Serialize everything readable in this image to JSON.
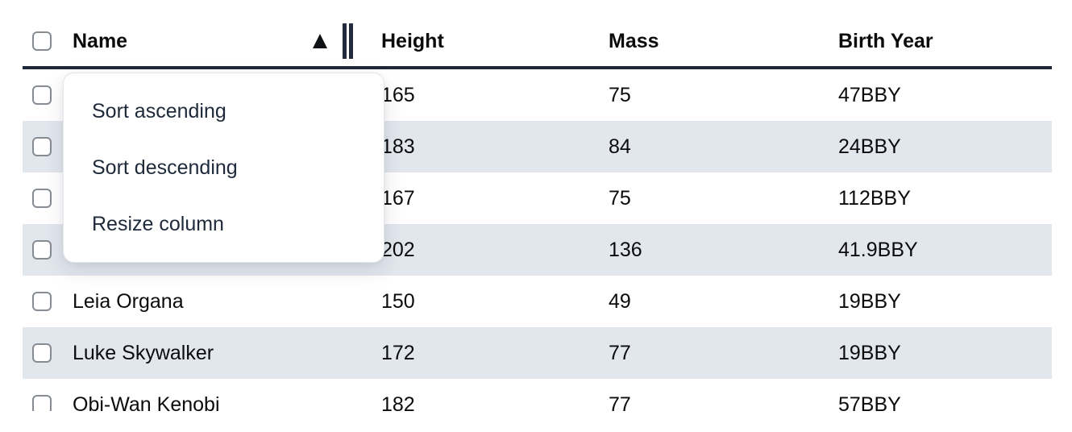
{
  "table": {
    "columns": [
      "Name",
      "Height",
      "Mass",
      "Birth Year"
    ],
    "sort_indicator": {
      "column": "Name",
      "direction": "ascending",
      "icon": "sort-ascending-triangle"
    },
    "select_all_checked": false,
    "rows": [
      {
        "checked": false,
        "name": "",
        "height": "165",
        "mass": "75",
        "birth_year": "47BBY"
      },
      {
        "checked": false,
        "name": "",
        "height": "183",
        "mass": "84",
        "birth_year": "24BBY"
      },
      {
        "checked": false,
        "name": "",
        "height": "167",
        "mass": "75",
        "birth_year": "112BBY"
      },
      {
        "checked": false,
        "name": "",
        "height": "202",
        "mass": "136",
        "birth_year": "41.9BBY"
      },
      {
        "checked": false,
        "name": "Leia Organa",
        "height": "150",
        "mass": "49",
        "birth_year": "19BBY"
      },
      {
        "checked": false,
        "name": "Luke Skywalker",
        "height": "172",
        "mass": "77",
        "birth_year": "19BBY"
      },
      {
        "checked": false,
        "name": "Obi-Wan Kenobi",
        "height": "182",
        "mass": "77",
        "birth_year": "57BBY"
      }
    ]
  },
  "context_menu": {
    "items": [
      {
        "label": "Sort ascending"
      },
      {
        "label": "Sort descending"
      },
      {
        "label": "Resize column"
      }
    ]
  },
  "colors": {
    "row_stripe": "#e2e7ee",
    "header_border": "#1e293b",
    "menu_text": "#1e2939",
    "body_text": "#0b0b0d",
    "checkbox_border": "#878b92"
  }
}
